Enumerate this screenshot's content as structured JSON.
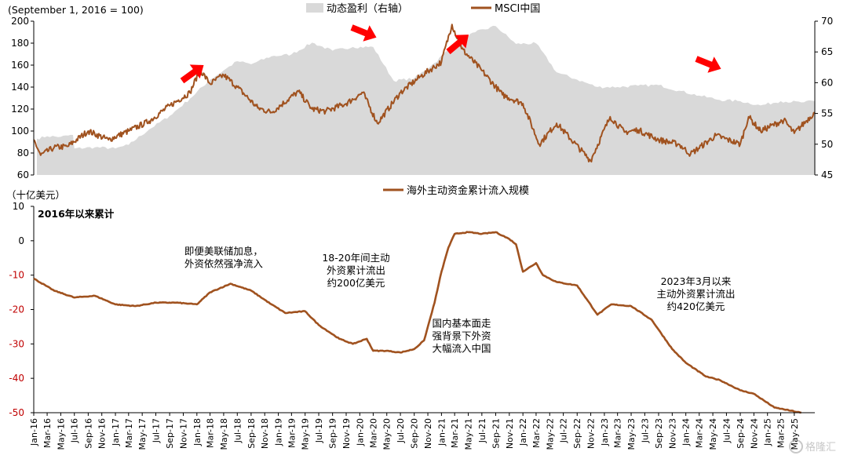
{
  "chart_data": [
    {
      "type": "line",
      "title": "",
      "note": "(September 1, 2016 = 100)",
      "ylabel": "",
      "ylim": [
        60,
        200
      ],
      "yticks": [
        60,
        80,
        100,
        120,
        140,
        160,
        180,
        200
      ],
      "y2lim": [
        45,
        70
      ],
      "y2ticks": [
        45,
        50,
        55,
        60,
        65,
        70
      ],
      "legend_position": "top",
      "series": [
        {
          "name": "动态盈利（右轴）",
          "type": "area",
          "axis": "right",
          "color": "#d9d9d9",
          "points": [
            [
              "2016-01-15",
              50.9
            ],
            [
              "2016-03-01",
              51.3
            ],
            [
              "2016-05-01",
              51.2
            ],
            [
              "2016-06-25",
              51.5
            ],
            [
              "2016-07-01",
              49.3
            ],
            [
              "2016-10-01",
              49.5
            ],
            [
              "2017-01-01",
              49.3
            ],
            [
              "2017-03-01",
              49.9
            ],
            [
              "2017-06-01",
              52.4
            ],
            [
              "2017-09-01",
              54.6
            ],
            [
              "2017-12-01",
              57.4
            ],
            [
              "2018-03-01",
              60.5
            ],
            [
              "2018-05-01",
              62.0
            ],
            [
              "2018-07-01",
              63.5
            ],
            [
              "2018-09-01",
              63.0
            ],
            [
              "2018-12-01",
              64.3
            ],
            [
              "2019-03-01",
              64.6
            ],
            [
              "2019-06-01",
              66.5
            ],
            [
              "2019-09-01",
              65.2
            ],
            [
              "2019-12-01",
              65.8
            ],
            [
              "2020-03-01",
              65.8
            ],
            [
              "2020-06-01",
              60.3
            ],
            [
              "2020-09-01",
              60.7
            ],
            [
              "2020-12-01",
              63.2
            ],
            [
              "2021-03-01",
              66.4
            ],
            [
              "2021-06-01",
              68.2
            ],
            [
              "2021-09-01",
              69.2
            ],
            [
              "2021-12-01",
              66.3
            ],
            [
              "2022-03-01",
              66.4
            ],
            [
              "2022-06-01",
              61.7
            ],
            [
              "2022-09-01",
              60.5
            ],
            [
              "2022-12-01",
              59.3
            ],
            [
              "2023-03-01",
              59.3
            ],
            [
              "2023-06-01",
              59.5
            ],
            [
              "2023-09-01",
              59.6
            ],
            [
              "2023-12-01",
              58.7
            ],
            [
              "2024-03-01",
              57.9
            ],
            [
              "2024-06-01",
              57.2
            ],
            [
              "2024-09-01",
              57.0
            ],
            [
              "2024-12-01",
              56.3
            ],
            [
              "2025-03-01",
              57.0
            ],
            [
              "2025-06-01",
              56.8
            ],
            [
              "2025-07-31",
              57.0
            ]
          ]
        },
        {
          "name": "MSCI中国",
          "type": "line",
          "axis": "left",
          "color": "#a0521f",
          "points": [
            [
              "2016-01-01",
              92
            ],
            [
              "2016-02-01",
              78
            ],
            [
              "2016-04-01",
              85
            ],
            [
              "2016-06-01",
              86
            ],
            [
              "2016-09-01",
              100
            ],
            [
              "2016-12-01",
              92
            ],
            [
              "2017-03-01",
              100
            ],
            [
              "2017-06-01",
              109
            ],
            [
              "2017-09-01",
              123
            ],
            [
              "2017-12-01",
              135
            ],
            [
              "2018-01-15",
              156
            ],
            [
              "2018-03-01",
              143
            ],
            [
              "2018-05-01",
              151
            ],
            [
              "2018-07-01",
              140
            ],
            [
              "2018-10-01",
              121
            ],
            [
              "2018-12-01",
              117
            ],
            [
              "2019-04-01",
              136
            ],
            [
              "2019-06-01",
              120
            ],
            [
              "2019-08-01",
              118
            ],
            [
              "2019-11-01",
              125
            ],
            [
              "2020-01-15",
              135
            ],
            [
              "2020-03-20",
              107
            ],
            [
              "2020-07-01",
              135
            ],
            [
              "2020-10-01",
              150
            ],
            [
              "2021-01-01",
              163
            ],
            [
              "2021-02-17",
              197
            ],
            [
              "2021-04-01",
              175
            ],
            [
              "2021-07-01",
              155
            ],
            [
              "2021-10-01",
              133
            ],
            [
              "2022-01-01",
              125
            ],
            [
              "2022-03-15",
              88
            ],
            [
              "2022-06-01",
              107
            ],
            [
              "2022-10-31",
              73
            ],
            [
              "2023-01-27",
              113
            ],
            [
              "2023-04-01",
              99
            ],
            [
              "2023-06-01",
              101
            ],
            [
              "2023-09-01",
              92
            ],
            [
              "2023-12-01",
              88
            ],
            [
              "2024-01-22",
              79
            ],
            [
              "2024-05-15",
              96
            ],
            [
              "2024-09-01",
              88
            ],
            [
              "2024-10-08",
              113
            ],
            [
              "2024-12-01",
              100
            ],
            [
              "2025-03-15",
              110
            ],
            [
              "2025-05-01",
              98
            ],
            [
              "2025-07-31",
              117
            ]
          ]
        }
      ],
      "annotations": [
        "up-arrow 2018-01",
        "down-arrow 2020-01",
        "up-arrow 2021-02",
        "down-arrow 2024-01"
      ]
    },
    {
      "type": "line",
      "title": "2016年以来累计",
      "unit_label": "（十亿美元）",
      "ylabel": "",
      "ylim": [
        -50,
        10
      ],
      "yticks": [
        -50,
        -40,
        -30,
        -20,
        -10,
        0,
        10
      ],
      "legend_position": "top",
      "series": [
        {
          "name": "海外主动资金累计流入规模",
          "color": "#a0521f",
          "points": [
            [
              "2016-01-01",
              -11.0
            ],
            [
              "2016-04-01",
              -14.5
            ],
            [
              "2016-07-01",
              -16.5
            ],
            [
              "2016-10-01",
              -16.0
            ],
            [
              "2017-01-01",
              -18.5
            ],
            [
              "2017-04-01",
              -19.0
            ],
            [
              "2017-07-01",
              -18.0
            ],
            [
              "2017-10-01",
              -18.0
            ],
            [
              "2018-01-01",
              -18.5
            ],
            [
              "2018-03-01",
              -15.0
            ],
            [
              "2018-06-01",
              -12.5
            ],
            [
              "2018-09-01",
              -14.5
            ],
            [
              "2018-12-01",
              -18.5
            ],
            [
              "2019-02-01",
              -21.0
            ],
            [
              "2019-05-01",
              -20.5
            ],
            [
              "2019-07-01",
              -24.5
            ],
            [
              "2019-10-01",
              -28.5
            ],
            [
              "2019-12-01",
              -30.0
            ],
            [
              "2020-02-01",
              -28.5
            ],
            [
              "2020-03-01",
              -32.0
            ],
            [
              "2020-05-01",
              -32.0
            ],
            [
              "2020-07-01",
              -32.5
            ],
            [
              "2020-09-01",
              -31.5
            ],
            [
              "2020-10-15",
              -29.0
            ],
            [
              "2020-12-01",
              -18.0
            ],
            [
              "2021-01-01",
              -9.0
            ],
            [
              "2021-02-01",
              -2.0
            ],
            [
              "2021-03-01",
              2.0
            ],
            [
              "2021-05-01",
              2.5
            ],
            [
              "2021-07-01",
              2.0
            ],
            [
              "2021-09-01",
              2.5
            ],
            [
              "2021-11-01",
              0.5
            ],
            [
              "2021-12-01",
              -1.0
            ],
            [
              "2022-01-01",
              -9.0
            ],
            [
              "2022-03-01",
              -6.5
            ],
            [
              "2022-04-01",
              -10.0
            ],
            [
              "2022-06-01",
              -12.0
            ],
            [
              "2022-09-01",
              -13.0
            ],
            [
              "2022-12-01",
              -21.5
            ],
            [
              "2023-02-01",
              -18.5
            ],
            [
              "2023-05-01",
              -19.0
            ],
            [
              "2023-08-01",
              -23.0
            ],
            [
              "2023-11-01",
              -31.5
            ],
            [
              "2024-01-01",
              -35.5
            ],
            [
              "2024-04-01",
              -39.5
            ],
            [
              "2024-06-01",
              -40.5
            ],
            [
              "2024-09-01",
              -43.5
            ],
            [
              "2024-11-01",
              -44.5
            ],
            [
              "2025-02-01",
              -48.5
            ],
            [
              "2025-06-01",
              -50.0
            ]
          ]
        }
      ],
      "annotations": [
        {
          "lines": [
            "即便美联储加息，",
            "外资依然强净流入"
          ],
          "at": [
            "2018-05-01",
            -4
          ]
        },
        {
          "lines": [
            "18-20年间主动",
            "外资累计流出",
            "约200亿美元"
          ],
          "at": [
            "2019-12-15",
            -6
          ]
        },
        {
          "lines": [
            "国内基本面走",
            "强背景下外资",
            "大幅流入中国"
          ],
          "at": [
            "2021-04-01",
            -25
          ]
        },
        {
          "lines": [
            "2023年3月以来",
            "主动外资累计流出",
            "约420亿美元"
          ],
          "at": [
            "2024-02-15",
            -12.8
          ]
        }
      ]
    }
  ],
  "x_ticks": [
    "Jan-16",
    "Mar-16",
    "May-16",
    "Jul-16",
    "Sep-16",
    "Nov-16",
    "Jan-17",
    "Mar-17",
    "May-17",
    "Jul-17",
    "Sep-17",
    "Nov-17",
    "Jan-18",
    "Mar-18",
    "May-18",
    "Jul-18",
    "Sep-18",
    "Nov-18",
    "Jan-19",
    "Mar-19",
    "May-19",
    "Jul-19",
    "Sep-19",
    "Nov-19",
    "Jan-20",
    "Mar-20",
    "May-20",
    "Jul-20",
    "Sep-20",
    "Nov-20",
    "Jan-21",
    "Mar-21",
    "May-21",
    "Jul-21",
    "Sep-21",
    "Nov-21",
    "Jan-22",
    "Mar-22",
    "May-22",
    "Jul-22",
    "Sep-22",
    "Nov-22",
    "Jan-23",
    "Mar-23",
    "May-23",
    "Jul-23",
    "Sep-23",
    "Nov-23",
    "Jan-24",
    "Mar-24",
    "May-24",
    "Jul-24",
    "Sep-24",
    "Nov-24",
    "Jan-25",
    "Mar-25",
    "May-25"
  ],
  "watermark": "格隆汇"
}
